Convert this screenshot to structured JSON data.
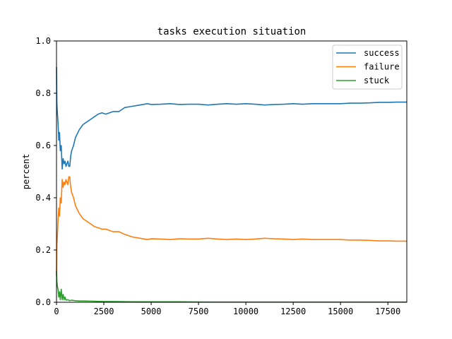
{
  "chart_data": {
    "type": "line",
    "title": "tasks execution situation",
    "xlabel": "",
    "ylabel": "percent",
    "xlim": [
      0,
      18500
    ],
    "ylim": [
      0.0,
      1.0
    ],
    "x_ticks": [
      0,
      2500,
      5000,
      7500,
      10000,
      12500,
      15000,
      17500
    ],
    "y_ticks": [
      "0.0",
      "0.2",
      "0.4",
      "0.6",
      "0.8",
      "1.0"
    ],
    "y_tick_values": [
      0.0,
      0.2,
      0.4,
      0.6,
      0.8,
      1.0
    ],
    "grid": false,
    "legend_position": "top-right",
    "series": [
      {
        "name": "success",
        "color": "#1f77b4",
        "x": [
          1,
          20,
          50,
          80,
          120,
          160,
          200,
          250,
          300,
          350,
          400,
          450,
          500,
          550,
          600,
          650,
          700,
          750,
          800,
          900,
          1000,
          1200,
          1400,
          1600,
          1800,
          2000,
          2200,
          2400,
          2600,
          2800,
          3000,
          3300,
          3600,
          4000,
          4400,
          4800,
          5000,
          5500,
          6000,
          6500,
          7000,
          7500,
          8000,
          8500,
          9000,
          9500,
          10000,
          10500,
          11000,
          11500,
          12000,
          12500,
          13000,
          13500,
          14000,
          14500,
          15000,
          15500,
          16000,
          16500,
          17000,
          17500,
          18000,
          18500
        ],
        "values": [
          0.9,
          0.76,
          0.72,
          0.69,
          0.62,
          0.65,
          0.58,
          0.6,
          0.51,
          0.55,
          0.53,
          0.54,
          0.52,
          0.53,
          0.54,
          0.52,
          0.52,
          0.56,
          0.58,
          0.6,
          0.63,
          0.66,
          0.68,
          0.69,
          0.7,
          0.71,
          0.72,
          0.725,
          0.72,
          0.725,
          0.73,
          0.73,
          0.745,
          0.75,
          0.755,
          0.76,
          0.757,
          0.758,
          0.76,
          0.757,
          0.758,
          0.758,
          0.755,
          0.758,
          0.76,
          0.758,
          0.76,
          0.758,
          0.755,
          0.757,
          0.758,
          0.76,
          0.758,
          0.76,
          0.76,
          0.76,
          0.76,
          0.762,
          0.762,
          0.763,
          0.765,
          0.765,
          0.766,
          0.766
        ]
      },
      {
        "name": "failure",
        "color": "#ff7f0e",
        "x": [
          1,
          20,
          50,
          80,
          120,
          160,
          200,
          250,
          300,
          350,
          400,
          450,
          500,
          550,
          600,
          650,
          700,
          750,
          800,
          900,
          1000,
          1200,
          1400,
          1600,
          1800,
          2000,
          2200,
          2400,
          2600,
          2800,
          3000,
          3300,
          3600,
          4000,
          4400,
          4800,
          5000,
          5500,
          6000,
          6500,
          7000,
          7500,
          8000,
          8500,
          9000,
          9500,
          10000,
          10500,
          11000,
          11500,
          12000,
          12500,
          13000,
          13500,
          14000,
          14500,
          15000,
          15500,
          16000,
          16500,
          17000,
          17500,
          18000,
          18500
        ],
        "values": [
          0.1,
          0.22,
          0.26,
          0.31,
          0.36,
          0.33,
          0.4,
          0.38,
          0.47,
          0.44,
          0.46,
          0.45,
          0.47,
          0.46,
          0.45,
          0.48,
          0.48,
          0.44,
          0.42,
          0.4,
          0.37,
          0.34,
          0.32,
          0.31,
          0.3,
          0.29,
          0.285,
          0.28,
          0.28,
          0.275,
          0.27,
          0.27,
          0.26,
          0.25,
          0.245,
          0.24,
          0.243,
          0.242,
          0.24,
          0.243,
          0.242,
          0.242,
          0.245,
          0.242,
          0.24,
          0.242,
          0.24,
          0.242,
          0.245,
          0.243,
          0.242,
          0.24,
          0.242,
          0.24,
          0.24,
          0.24,
          0.24,
          0.238,
          0.238,
          0.237,
          0.235,
          0.235,
          0.234,
          0.234
        ]
      },
      {
        "name": "stuck",
        "color": "#2ca02c",
        "x": [
          1,
          20,
          50,
          80,
          120,
          160,
          200,
          250,
          300,
          350,
          400,
          450,
          500,
          600,
          700,
          800,
          1000,
          1200,
          1500,
          2000,
          2500,
          3000,
          4000,
          5000,
          6000,
          8000,
          10000,
          12500,
          15000,
          17500,
          18500
        ],
        "values": [
          0.12,
          0.08,
          0.06,
          0.05,
          0.02,
          0.04,
          0.01,
          0.05,
          0.01,
          0.03,
          0.01,
          0.02,
          0.008,
          0.01,
          0.006,
          0.008,
          0.006,
          0.005,
          0.005,
          0.004,
          0.003,
          0.003,
          0.002,
          0.002,
          0.002,
          0.001,
          0.001,
          0.001,
          0.001,
          0.001,
          0.001
        ]
      }
    ]
  }
}
